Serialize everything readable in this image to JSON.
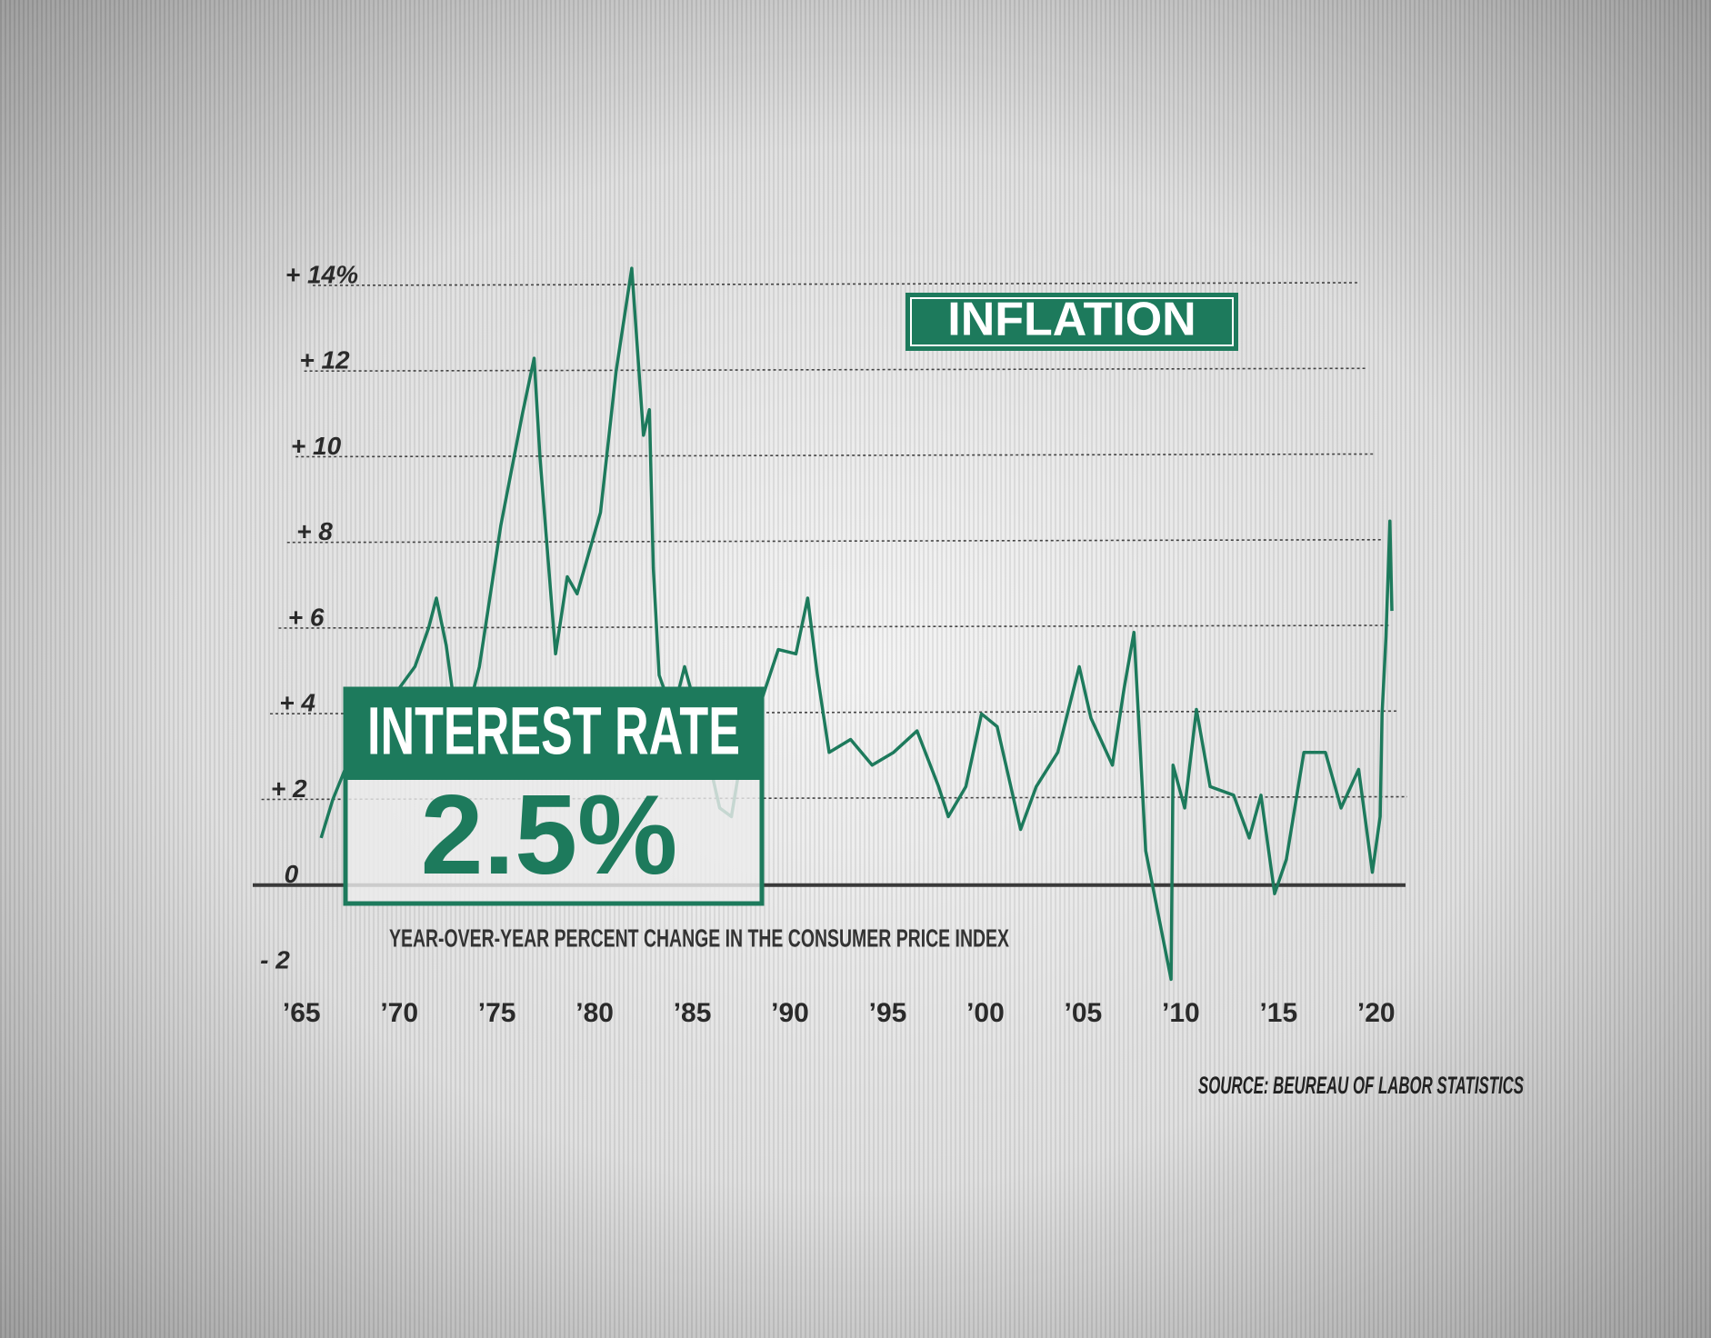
{
  "chart_data": {
    "type": "line",
    "title": "INFLATION",
    "subtitle": "YEAR-OVER-YEAR PERCENT CHANGE IN THE CONSUMER PRICE INDEX",
    "source": "SOURCE: BEUREAU OF LABOR STATISTICS",
    "annotation": {
      "title": "INTEREST RATE",
      "text": "2.5%"
    },
    "color": "#1d7a5c",
    "x": [
      1966.0,
      1966.6,
      1967.4,
      1968.3,
      1969.2,
      1970.0,
      1970.8,
      1971.5,
      1971.9,
      1972.4,
      1973.0,
      1973.6,
      1974.1,
      1975.2,
      1976.3,
      1976.9,
      1977.2,
      1978.0,
      1978.6,
      1979.1,
      1980.3,
      1981.1,
      1981.9,
      1982.5,
      1982.8,
      1983.0,
      1983.3,
      1984.0,
      1984.6,
      1985.5,
      1986.4,
      1987.0,
      1987.8,
      1988.6,
      1989.4,
      1990.3,
      1990.9,
      1991.4,
      1992.0,
      1993.1,
      1994.2,
      1995.3,
      1996.5,
      1997.6,
      1998.1,
      1999.0,
      1999.8,
      2000.6,
      2001.8,
      2002.6,
      2003.7,
      2004.8,
      2005.4,
      2006.5,
      2007.1,
      2007.6,
      2008.2,
      2009.5,
      2009.6,
      2010.2,
      2010.8,
      2011.5,
      2012.7,
      2013.5,
      2014.1,
      2014.8,
      2015.4,
      2016.3,
      2017.4,
      2018.2,
      2019.1,
      2019.8,
      2020.2,
      2020.3,
      2020.5,
      2020.7,
      2020.8
    ],
    "values": [
      1.1,
      2.0,
      2.9,
      3.3,
      4.0,
      4.6,
      5.1,
      6.0,
      6.7,
      5.6,
      3.6,
      4.2,
      5.1,
      8.4,
      11.0,
      12.3,
      10.0,
      5.4,
      7.2,
      6.8,
      8.7,
      12.0,
      14.4,
      10.5,
      11.1,
      7.4,
      4.9,
      4.0,
      5.1,
      3.6,
      1.8,
      1.6,
      3.8,
      4.4,
      5.5,
      5.4,
      6.7,
      4.9,
      3.1,
      3.4,
      2.8,
      3.1,
      3.6,
      2.3,
      1.6,
      2.3,
      4.0,
      3.7,
      1.3,
      2.3,
      3.1,
      5.1,
      3.9,
      2.8,
      4.6,
      5.9,
      0.8,
      -2.2,
      2.8,
      1.8,
      4.1,
      2.3,
      2.1,
      1.1,
      2.1,
      -0.2,
      0.6,
      3.1,
      3.1,
      1.8,
      2.7,
      0.3,
      1.6,
      4.0,
      5.8,
      8.5,
      6.4
    ],
    "xlim": [
      1962.5,
      2021.5
    ],
    "ylim": [
      -2,
      14
    ],
    "yticks": [
      {
        "value": -2,
        "label": "- 2"
      },
      0,
      {
        "value": 2,
        "label": "+ 2"
      },
      {
        "value": 4,
        "label": "+ 4"
      },
      {
        "value": 6,
        "label": "+ 6"
      },
      {
        "value": 8,
        "label": "+ 8"
      },
      {
        "value": 10,
        "label": "+ 10"
      },
      {
        "value": 12,
        "label": "+ 12"
      },
      {
        "value": 14,
        "label": "+ 14%"
      }
    ],
    "xticks": [
      {
        "value": 1965,
        "label": "’65"
      },
      {
        "value": 1970,
        "label": "’70"
      },
      {
        "value": 1975,
        "label": "’75"
      },
      {
        "value": 1980,
        "label": "’80"
      },
      {
        "value": 1985,
        "label": "’85"
      },
      {
        "value": 1990,
        "label": "’90"
      },
      {
        "value": 1995,
        "label": "’95"
      },
      {
        "value": 2000,
        "label": "’00"
      },
      {
        "value": 2005,
        "label": "’05"
      },
      {
        "value": 2010,
        "label": "’10"
      },
      {
        "value": 2015,
        "label": "’15"
      },
      {
        "value": 2020,
        "label": "’20"
      }
    ],
    "grid": true
  }
}
